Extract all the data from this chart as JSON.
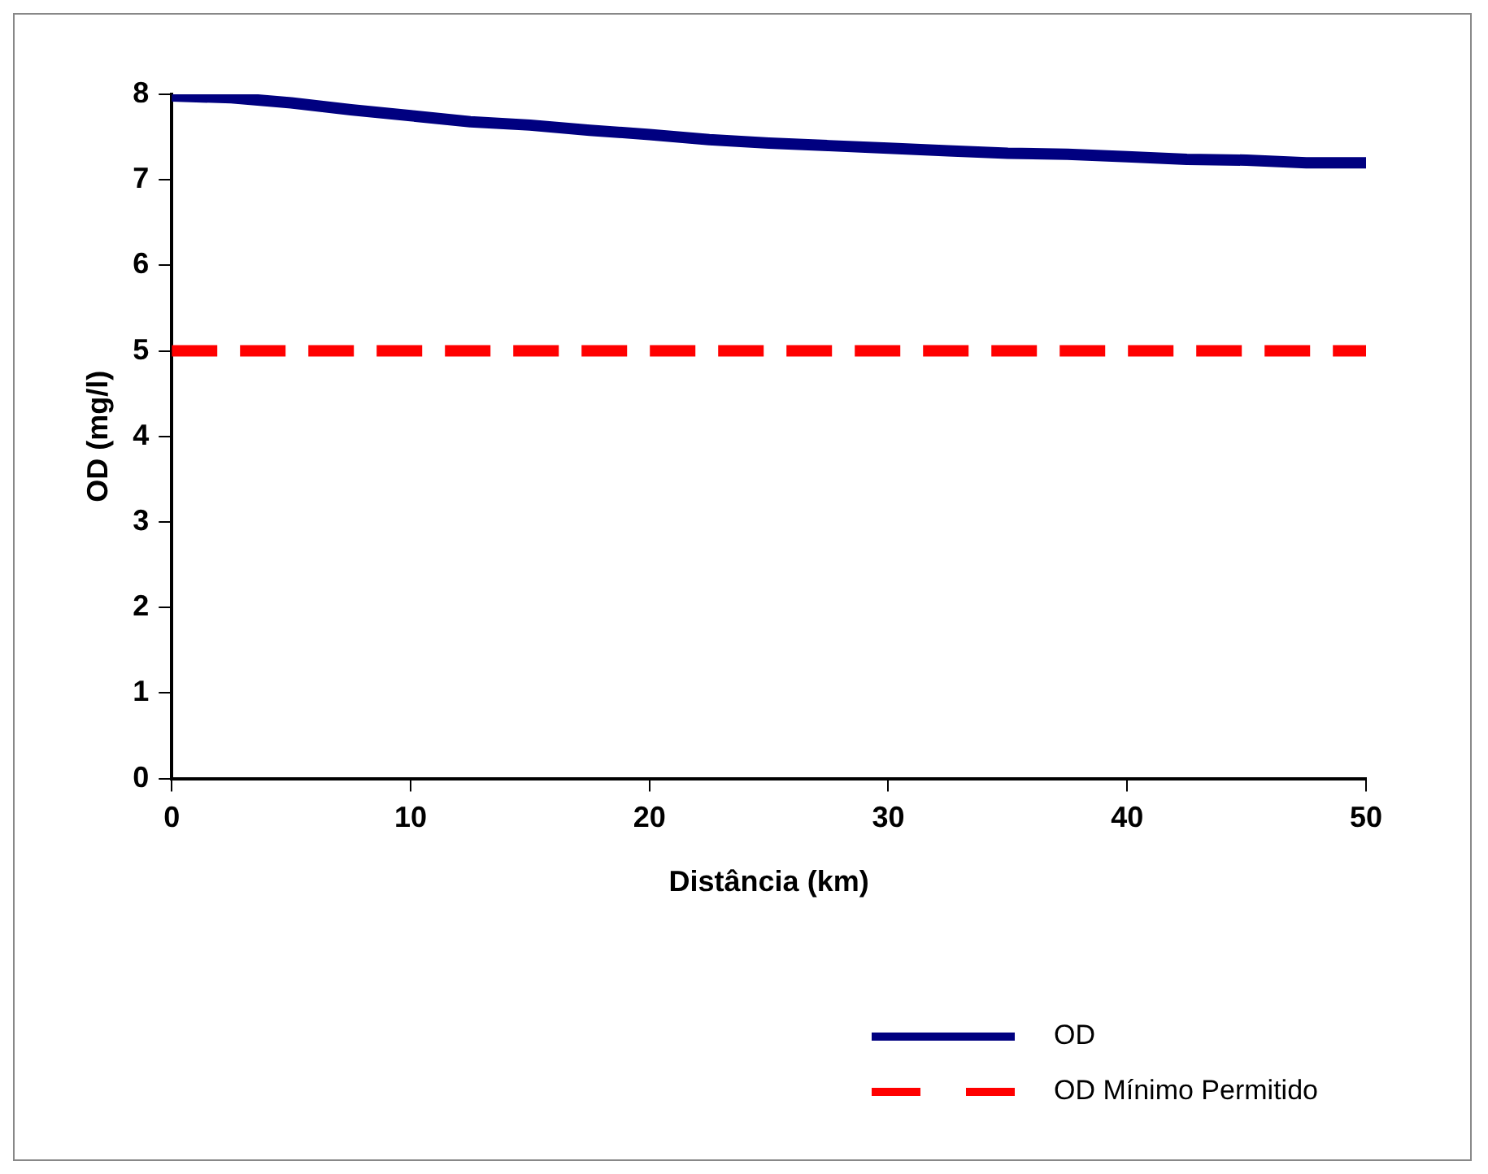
{
  "chart_data": {
    "type": "line",
    "xlabel": "Distância (km)",
    "ylabel": "OD (mg/l)",
    "xlim": [
      0,
      50
    ],
    "xticks": [
      0,
      10,
      20,
      30,
      40,
      50
    ],
    "ylim": [
      0,
      8
    ],
    "yticks": [
      0,
      1,
      2,
      3,
      4,
      5,
      6,
      7,
      8
    ],
    "marker": "none",
    "legend": "bottom right",
    "series": [
      {
        "name": "OD",
        "color": "#000080",
        "line_style": "solid",
        "x": [
          0,
          2.5,
          5,
          7.5,
          10,
          12.5,
          15,
          17.5,
          20,
          22.5,
          25,
          27.5,
          30,
          32.5,
          35,
          37.5,
          40,
          42.5,
          45,
          47.5,
          50
        ],
        "values": [
          7.98,
          7.96,
          7.9,
          7.82,
          7.75,
          7.68,
          7.64,
          7.58,
          7.53,
          7.47,
          7.43,
          7.4,
          7.37,
          7.34,
          7.31,
          7.3,
          7.27,
          7.24,
          7.23,
          7.2,
          7.2
        ]
      },
      {
        "name": "OD Mínimo Permitido",
        "color": "#ff0000",
        "line_style": "dashed",
        "x": [
          0,
          50
        ],
        "values": [
          5,
          5
        ]
      }
    ]
  }
}
